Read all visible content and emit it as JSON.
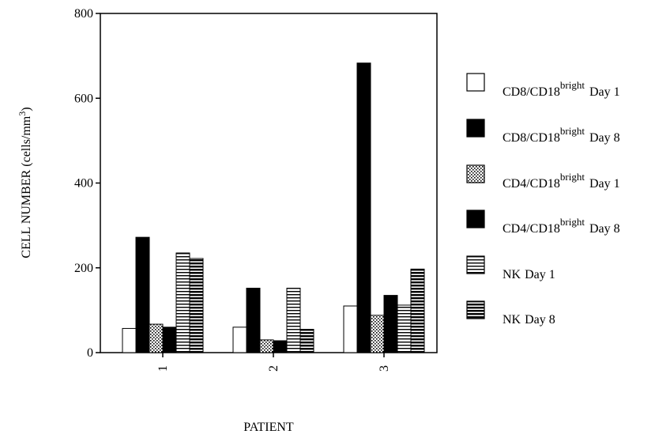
{
  "chart_data": {
    "type": "bar",
    "title": "",
    "xlabel": "PATIENT",
    "ylabel": "CELL NUMBER (cells/mm",
    "ylabel_sup": "3",
    "ylabel_end": ")",
    "ylim": [
      0,
      800
    ],
    "yticks": [
      "0",
      "200",
      "400",
      "600",
      "800"
    ],
    "categories": [
      "1",
      "2",
      "3"
    ],
    "grid": false,
    "legend_position": "right",
    "series": [
      {
        "name": "CD8/CD18",
        "sup": "bright",
        "suffix": "Day 1",
        "pattern": "white",
        "values": [
          57,
          60,
          110
        ]
      },
      {
        "name": "CD8/CD18",
        "sup": "bright",
        "suffix": "Day 8",
        "pattern": "black",
        "values": [
          272,
          152,
          683
        ]
      },
      {
        "name": "CD4/CD18",
        "sup": "bright",
        "suffix": "Day 1",
        "pattern": "dots",
        "values": [
          67,
          30,
          88
        ]
      },
      {
        "name": "CD4/CD18",
        "sup": "bright",
        "suffix": "Day 8",
        "pattern": "black",
        "values": [
          60,
          28,
          135
        ]
      },
      {
        "name": "NK",
        "sup": "",
        "suffix": "Day 1",
        "pattern": "hlines",
        "values": [
          235,
          152,
          112
        ]
      },
      {
        "name": "NK",
        "sup": "",
        "suffix": "Day 8",
        "pattern": "hlines-thick",
        "values": [
          222,
          55,
          197
        ]
      }
    ]
  }
}
